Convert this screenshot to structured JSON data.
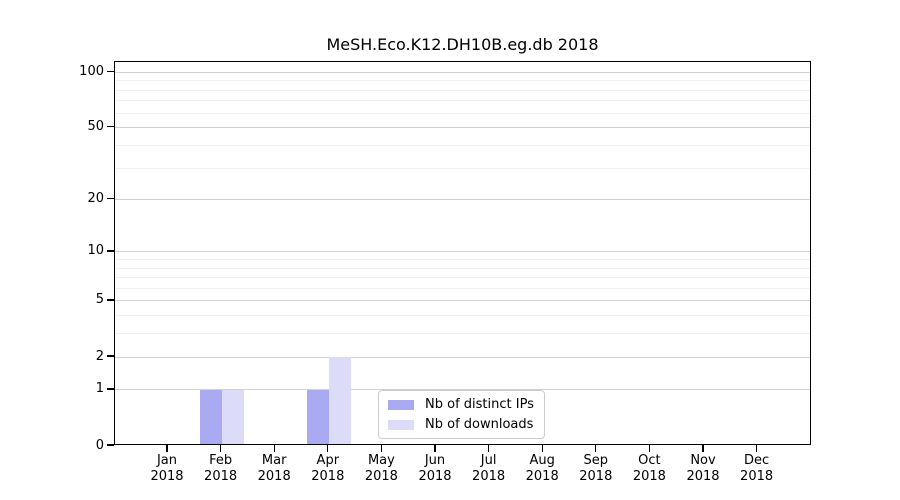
{
  "title": "MeSH.Eco.K12.DH10B.eg.db 2018",
  "colors": {
    "bar_distinct_ips": "#aaaaf3",
    "bar_downloads": "#dcdcf8",
    "grid_major": "#d2d2d2",
    "grid_minor": "#f0f0f0",
    "axis": "#000000",
    "legend_border": "#cbcbcb"
  },
  "chart_data": {
    "type": "bar",
    "title": "MeSH.Eco.K12.DH10B.eg.db 2018",
    "categories": [
      "Jan",
      "Feb",
      "Mar",
      "Apr",
      "May",
      "Jun",
      "Jul",
      "Aug",
      "Sep",
      "Oct",
      "Nov",
      "Dec"
    ],
    "category_year": "2018",
    "series": [
      {
        "name": "Nb of distinct IPs",
        "color": "#aaaaf3",
        "values": [
          0,
          1,
          0,
          1,
          0,
          0,
          0,
          0,
          0,
          0,
          0,
          0
        ]
      },
      {
        "name": "Nb of downloads",
        "color": "#dcdcf8",
        "values": [
          0,
          1,
          0,
          2,
          0,
          0,
          0,
          0,
          0,
          0,
          0,
          0
        ]
      }
    ],
    "yscale": "log10(1+y)",
    "y_major_ticks": [
      0,
      1,
      2,
      5,
      10,
      20,
      50,
      100
    ],
    "y_minor_gridlines": [
      3,
      4,
      6,
      7,
      8,
      9,
      30,
      40,
      60,
      70,
      80,
      90
    ],
    "ylim": [
      0,
      114
    ],
    "grid": true,
    "legend_position": "lower-center-inside"
  }
}
